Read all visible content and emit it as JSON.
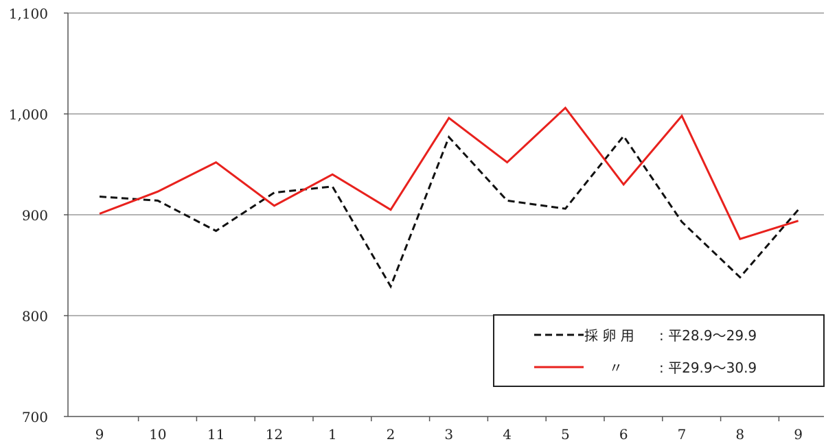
{
  "chart_data": {
    "type": "line",
    "categories": [
      "9",
      "10",
      "11",
      "12",
      "1",
      "2",
      "3",
      "4",
      "5",
      "6",
      "7",
      "8",
      "9"
    ],
    "ylim": [
      700,
      1100
    ],
    "yticks": [
      700,
      800,
      900,
      1000,
      1100
    ],
    "ytick_labels": [
      "700",
      "800",
      "900",
      "1,000",
      "1,100"
    ],
    "grid": true,
    "legend_position": "bottom-right",
    "series": [
      {
        "name": "採 卵 用 : 平28.9～29.9",
        "legend_label": "採 卵 用",
        "legend_period": ": 平28.9～29.9",
        "style": "dashed",
        "color": "#111111",
        "values": [
          918,
          914,
          884,
          922,
          928,
          829,
          977,
          914,
          906,
          978,
          893,
          838,
          905
        ]
      },
      {
        "name": "〃 : 平29.9～30.9",
        "legend_label": "〃",
        "legend_period": ": 平29.9～30.9",
        "style": "solid",
        "color": "#e8211d",
        "values": [
          901,
          923,
          952,
          909,
          940,
          905,
          996,
          952,
          1006,
          930,
          998,
          876,
          894
        ]
      }
    ]
  }
}
